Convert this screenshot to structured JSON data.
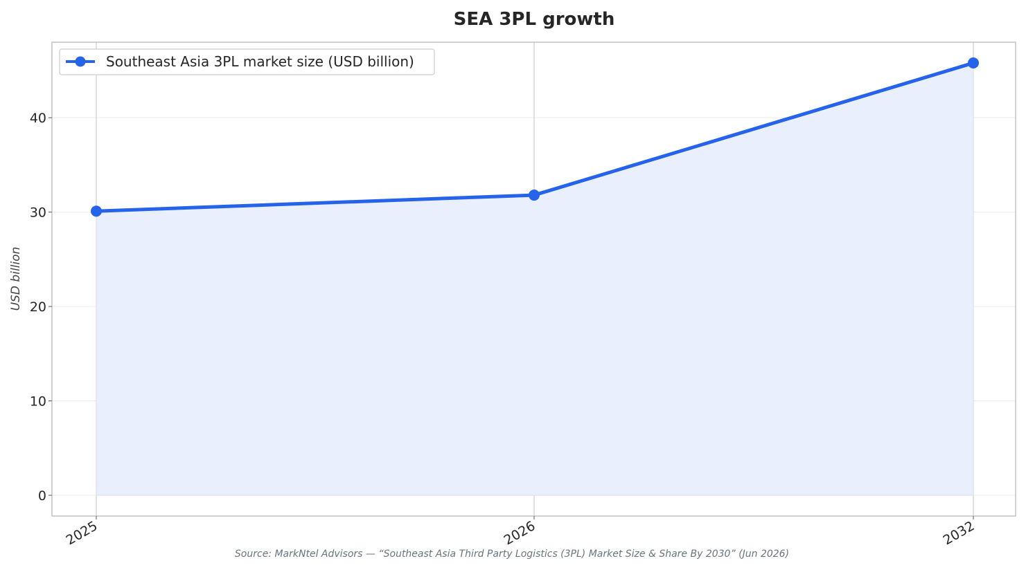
{
  "chart_data": {
    "type": "area",
    "title": "SEA 3PL growth",
    "xlabel": "",
    "ylabel": "USD billion",
    "x": [
      "2025",
      "2026",
      "2032"
    ],
    "series": [
      {
        "name": "Southeast Asia 3PL market size (USD billion)",
        "values": [
          30.1,
          31.8,
          45.8
        ]
      }
    ],
    "ylim": [
      -2.2,
      48
    ],
    "yticks": [
      0,
      10,
      20,
      30,
      40
    ],
    "grid": true,
    "legend_position": "top-left",
    "colors": {
      "line": "#2563eb",
      "fill": "#e9effc"
    }
  },
  "source": "Source: MarkNtel Advisors — “Southeast Asia Third Party Logistics (3PL) Market Size & Share By 2030” (Jun 2026)"
}
